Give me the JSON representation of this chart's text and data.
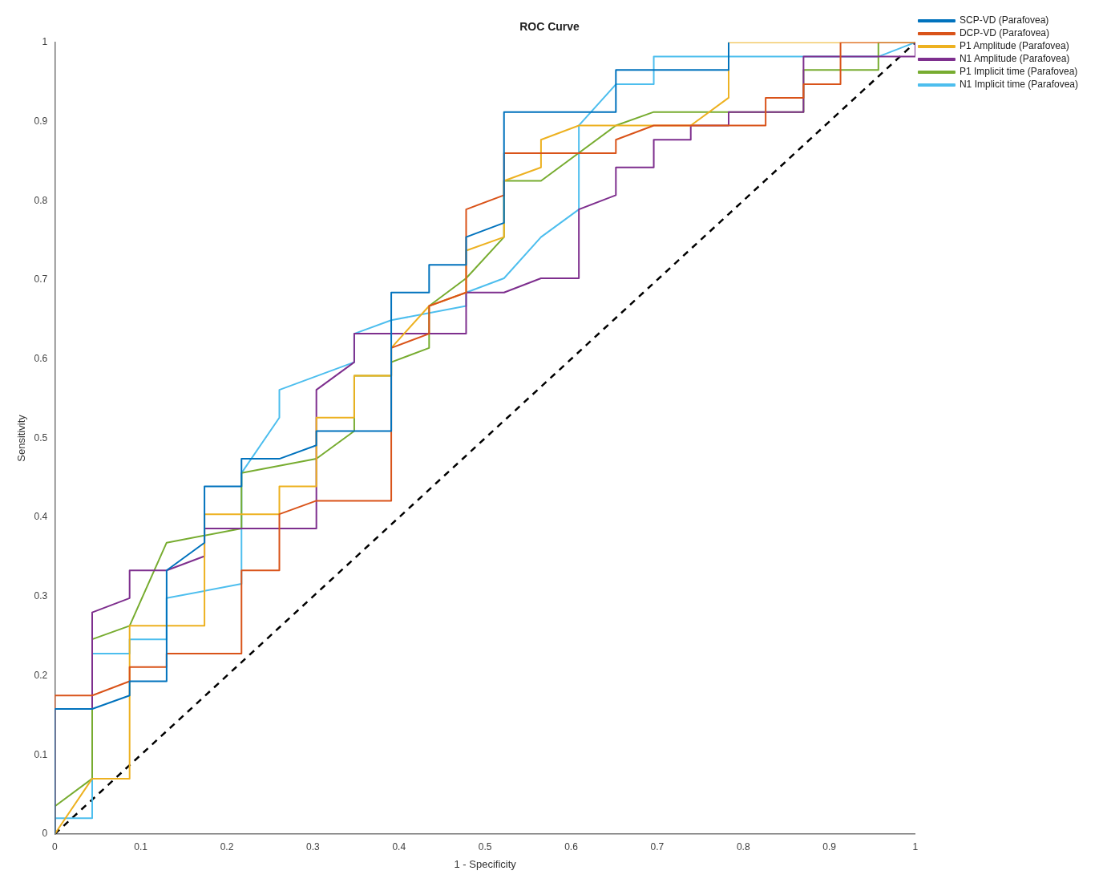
{
  "chart_data": {
    "type": "line",
    "title": "ROC Curve",
    "xlabel": "1 - Specificity",
    "ylabel": "Sensitivity",
    "xlim": [
      0,
      1
    ],
    "ylim": [
      0,
      1
    ],
    "xticks": [
      0,
      0.1,
      0.2,
      0.3,
      0.4,
      0.5,
      0.6,
      0.7,
      0.8,
      0.9,
      1
    ],
    "yticks": [
      0,
      0.1,
      0.2,
      0.3,
      0.4,
      0.5,
      0.6,
      0.7,
      0.8,
      0.9,
      1
    ],
    "grid": false,
    "legend": "top right",
    "marker": "none",
    "series": [
      {
        "name": "SCP-VD (Parafovea)",
        "color": "#0072bd",
        "x": [
          0,
          0,
          0.0435,
          0.087,
          0.087,
          0.13,
          0.13,
          0.174,
          0.174,
          0.217,
          0.217,
          0.261,
          0.304,
          0.304,
          0.391,
          0.391,
          0.435,
          0.435,
          0.478,
          0.478,
          0.522,
          0.522,
          0.652,
          0.652,
          0.783,
          0.783
        ],
        "values": [
          0,
          0.158,
          0.158,
          0.175,
          0.193,
          0.193,
          0.333,
          0.368,
          0.439,
          0.439,
          0.474,
          0.474,
          0.491,
          0.509,
          0.509,
          0.684,
          0.684,
          0.719,
          0.719,
          0.754,
          0.772,
          0.912,
          0.912,
          0.965,
          0.965,
          1
        ]
      },
      {
        "name": "DCP-VD (Parafovea)",
        "color": "#d95319",
        "x": [
          0,
          0,
          0.0435,
          0.087,
          0.087,
          0.13,
          0.13,
          0.217,
          0.217,
          0.261,
          0.261,
          0.304,
          0.391,
          0.391,
          0.435,
          0.435,
          0.478,
          0.478,
          0.522,
          0.522,
          0.652,
          0.652,
          0.696,
          0.826,
          0.826,
          0.87,
          0.87,
          0.913,
          0.913,
          1
        ],
        "values": [
          0,
          0.175,
          0.175,
          0.193,
          0.211,
          0.211,
          0.228,
          0.228,
          0.333,
          0.333,
          0.404,
          0.421,
          0.421,
          0.614,
          0.632,
          0.667,
          0.684,
          0.789,
          0.807,
          0.86,
          0.86,
          0.877,
          0.895,
          0.895,
          0.93,
          0.93,
          0.947,
          0.947,
          1,
          1
        ]
      },
      {
        "name": "P1 Amplitude (Parafovea)",
        "color": "#edb120",
        "x": [
          0,
          0.0435,
          0.087,
          0.087,
          0.174,
          0.174,
          0.261,
          0.261,
          0.304,
          0.304,
          0.348,
          0.348,
          0.391,
          0.391,
          0.435,
          0.478,
          0.478,
          0.522,
          0.522,
          0.565,
          0.565,
          0.609,
          0.739,
          0.783,
          0.783,
          1
        ],
        "values": [
          0,
          0.07,
          0.07,
          0.263,
          0.263,
          0.404,
          0.404,
          0.439,
          0.439,
          0.526,
          0.526,
          0.579,
          0.579,
          0.614,
          0.667,
          0.684,
          0.737,
          0.754,
          0.825,
          0.842,
          0.877,
          0.895,
          0.895,
          0.93,
          1,
          1
        ]
      },
      {
        "name": "N1 Amplitude (Parafovea)",
        "color": "#7e2f8e",
        "x": [
          0,
          0,
          0.0435,
          0.0435,
          0.087,
          0.087,
          0.13,
          0.174,
          0.174,
          0.304,
          0.304,
          0.348,
          0.348,
          0.478,
          0.478,
          0.522,
          0.565,
          0.609,
          0.609,
          0.652,
          0.652,
          0.696,
          0.696,
          0.739,
          0.739,
          0.783,
          0.783,
          0.87,
          0.87,
          1,
          1
        ],
        "values": [
          0,
          0.158,
          0.158,
          0.28,
          0.298,
          0.333,
          0.333,
          0.351,
          0.386,
          0.386,
          0.561,
          0.596,
          0.632,
          0.632,
          0.684,
          0.684,
          0.702,
          0.702,
          0.789,
          0.807,
          0.842,
          0.842,
          0.877,
          0.877,
          0.895,
          0.895,
          0.912,
          0.912,
          0.982,
          0.982,
          1
        ]
      },
      {
        "name": "P1 Implicit time (Parafovea)",
        "color": "#77ac30",
        "x": [
          0,
          0,
          0.0435,
          0.0435,
          0.087,
          0.13,
          0.217,
          0.217,
          0.304,
          0.348,
          0.348,
          0.391,
          0.391,
          0.435,
          0.435,
          0.478,
          0.522,
          0.522,
          0.565,
          0.652,
          0.696,
          0.87,
          0.87,
          0.957,
          0.957,
          1
        ],
        "values": [
          0,
          0.035,
          0.07,
          0.246,
          0.263,
          0.368,
          0.386,
          0.456,
          0.474,
          0.509,
          0.579,
          0.579,
          0.596,
          0.614,
          0.667,
          0.702,
          0.754,
          0.825,
          0.825,
          0.895,
          0.912,
          0.912,
          0.965,
          0.965,
          1,
          1
        ]
      },
      {
        "name": "N1 Implicit time (Parafovea)",
        "color": "#4dbeee",
        "x": [
          0,
          0,
          0.0435,
          0.0435,
          0.087,
          0.087,
          0.13,
          0.13,
          0.217,
          0.217,
          0.261,
          0.261,
          0.348,
          0.348,
          0.391,
          0.478,
          0.478,
          0.522,
          0.565,
          0.609,
          0.609,
          0.652,
          0.696,
          0.696,
          0.957,
          1
        ],
        "values": [
          0,
          0.02,
          0.02,
          0.228,
          0.228,
          0.246,
          0.246,
          0.298,
          0.316,
          0.456,
          0.526,
          0.561,
          0.596,
          0.632,
          0.649,
          0.667,
          0.684,
          0.702,
          0.754,
          0.789,
          0.895,
          0.947,
          0.947,
          0.982,
          0.982,
          1
        ]
      },
      {
        "color": "#000000",
        "line_style": "dashed",
        "x": [
          0,
          1
        ],
        "values": [
          0,
          1
        ]
      }
    ]
  }
}
